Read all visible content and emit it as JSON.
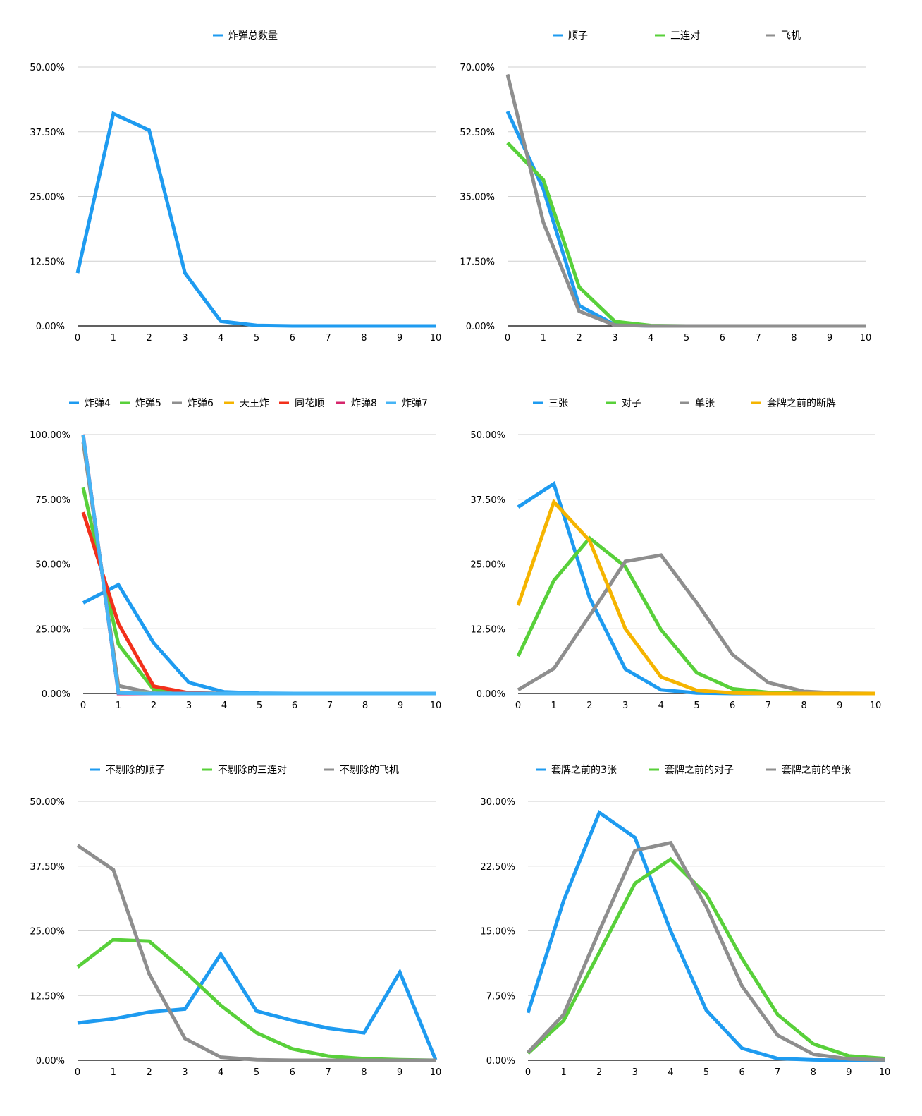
{
  "chart_data": [
    {
      "type": "line",
      "x": [
        0,
        1,
        2,
        3,
        4,
        5,
        6,
        7,
        8,
        9,
        10
      ],
      "ylim": [
        0,
        50
      ],
      "yticks": [
        "0.00%",
        "12.50%",
        "25.00%",
        "37.50%",
        "50.00%"
      ],
      "legend_position": "top",
      "grid": true,
      "series": [
        {
          "name": "炸弹总数量",
          "color": "#1e9bf0",
          "values": [
            10.2,
            41.0,
            37.8,
            10.2,
            0.9,
            0.1,
            0,
            0,
            0,
            0,
            0
          ]
        }
      ]
    },
    {
      "type": "line",
      "x": [
        0,
        1,
        2,
        3,
        4,
        5,
        6,
        7,
        8,
        9,
        10
      ],
      "ylim": [
        0,
        70
      ],
      "yticks": [
        "0.00%",
        "17.50%",
        "35.00%",
        "52.50%",
        "70.00%"
      ],
      "legend_position": "top",
      "grid": true,
      "series": [
        {
          "name": "顺子",
          "color": "#1e9bf0",
          "values": [
            58.0,
            37.0,
            5.5,
            0.3,
            0,
            0,
            0,
            0,
            0,
            0,
            0
          ]
        },
        {
          "name": "三连对",
          "color": "#58d03a",
          "values": [
            49.5,
            39.5,
            10.5,
            1.2,
            0.1,
            0,
            0,
            0,
            0,
            0,
            0
          ]
        },
        {
          "name": "飞机",
          "color": "#8e8e8e",
          "values": [
            68.0,
            28.0,
            4.0,
            0.2,
            0,
            0,
            0,
            0,
            0,
            0,
            0
          ]
        }
      ]
    },
    {
      "type": "line",
      "x": [
        0,
        1,
        2,
        3,
        4,
        5,
        6,
        7,
        8,
        9,
        10
      ],
      "ylim": [
        0,
        100
      ],
      "yticks": [
        "0.00%",
        "25.00%",
        "50.00%",
        "75.00%",
        "100.00%"
      ],
      "legend_position": "top",
      "grid": true,
      "series": [
        {
          "name": "炸弹4",
          "color": "#1e9bf0",
          "values": [
            35.0,
            42.0,
            19.5,
            4.2,
            0.6,
            0.1,
            0,
            0,
            0,
            0,
            0
          ]
        },
        {
          "name": "炸弹5",
          "color": "#58d03a",
          "values": [
            79.5,
            19.0,
            1.5,
            0.1,
            0,
            0,
            0,
            0,
            0,
            0,
            0
          ]
        },
        {
          "name": "炸弹6",
          "color": "#8e8e8e",
          "values": [
            97.0,
            3.0,
            0.1,
            0,
            0,
            0,
            0,
            0,
            0,
            0,
            0
          ]
        },
        {
          "name": "天王炸",
          "color": "#f5b400",
          "values": [
            99.5,
            0.5,
            0,
            0,
            0,
            0,
            0,
            0,
            0,
            0,
            0
          ]
        },
        {
          "name": "同花顺",
          "color": "#f2301b",
          "values": [
            70.0,
            27.0,
            2.8,
            0.2,
            0,
            0,
            0,
            0,
            0,
            0,
            0
          ]
        },
        {
          "name": "炸弹8",
          "color": "#d6256b",
          "values": [
            100,
            0,
            0,
            0,
            0,
            0,
            0,
            0,
            0,
            0,
            0
          ]
        },
        {
          "name": "炸弹7",
          "color": "#46b4f5",
          "values": [
            99.8,
            0.2,
            0,
            0,
            0,
            0,
            0,
            0,
            0,
            0,
            0
          ]
        }
      ]
    },
    {
      "type": "line",
      "x": [
        0,
        1,
        2,
        3,
        4,
        5,
        6,
        7,
        8,
        9,
        10
      ],
      "ylim": [
        0,
        50
      ],
      "yticks": [
        "0.00%",
        "12.50%",
        "25.00%",
        "37.50%",
        "50.00%"
      ],
      "legend_position": "top",
      "grid": true,
      "series": [
        {
          "name": "三张",
          "color": "#1e9bf0",
          "values": [
            36.0,
            40.5,
            18.5,
            4.7,
            0.7,
            0.1,
            0,
            0,
            0,
            0,
            0
          ]
        },
        {
          "name": "对子",
          "color": "#58d03a",
          "values": [
            7.2,
            21.8,
            30.0,
            24.5,
            12.3,
            4.0,
            0.9,
            0.2,
            0.05,
            0,
            0
          ]
        },
        {
          "name": "单张",
          "color": "#8e8e8e",
          "values": [
            0.7,
            4.8,
            15.0,
            25.5,
            26.7,
            17.5,
            7.5,
            2.1,
            0.4,
            0.05,
            0
          ]
        },
        {
          "name": "套牌之前的断牌",
          "color": "#f5b400",
          "values": [
            17.0,
            37.0,
            29.5,
            12.5,
            3.2,
            0.6,
            0.1,
            0,
            0,
            0,
            0
          ]
        }
      ]
    },
    {
      "type": "line",
      "x": [
        0,
        1,
        2,
        3,
        4,
        5,
        6,
        7,
        8,
        9,
        10
      ],
      "ylim": [
        0,
        50
      ],
      "yticks": [
        "0.00%",
        "12.50%",
        "25.00%",
        "37.50%",
        "50.00%"
      ],
      "legend_position": "top",
      "grid": true,
      "series": [
        {
          "name": "不剔除的顺子",
          "color": "#1e9bf0",
          "values": [
            7.2,
            8.0,
            9.3,
            9.9,
            20.5,
            9.5,
            7.7,
            6.2,
            5.3,
            17.0,
            0.1
          ]
        },
        {
          "name": "不剔除的三连对",
          "color": "#58d03a",
          "values": [
            18.0,
            23.3,
            23.0,
            17.1,
            10.6,
            5.3,
            2.2,
            0.8,
            0.3,
            0.1,
            0
          ]
        },
        {
          "name": "不剔除的飞机",
          "color": "#8e8e8e",
          "values": [
            41.5,
            36.8,
            16.7,
            4.2,
            0.6,
            0.1,
            0,
            0,
            0,
            0,
            0
          ]
        }
      ]
    },
    {
      "type": "line",
      "x": [
        0,
        1,
        2,
        3,
        4,
        5,
        6,
        7,
        8,
        9,
        10
      ],
      "ylim": [
        0,
        30
      ],
      "yticks": [
        "0.00%",
        "7.50%",
        "15.00%",
        "22.50%",
        "30.00%"
      ],
      "legend_position": "top",
      "grid": true,
      "series": [
        {
          "name": "套牌之前的3张",
          "color": "#1e9bf0",
          "values": [
            5.5,
            18.5,
            28.7,
            25.8,
            15.0,
            5.8,
            1.4,
            0.2,
            0.05,
            0,
            0
          ]
        },
        {
          "name": "套牌之前的对子",
          "color": "#58d03a",
          "values": [
            0.8,
            4.6,
            12.5,
            20.5,
            23.3,
            19.2,
            11.8,
            5.3,
            1.9,
            0.5,
            0.2
          ]
        },
        {
          "name": "套牌之前的单张",
          "color": "#8e8e8e",
          "values": [
            0.9,
            5.3,
            15.0,
            24.3,
            25.2,
            17.8,
            8.6,
            2.9,
            0.7,
            0.15,
            0.05
          ]
        }
      ]
    }
  ]
}
